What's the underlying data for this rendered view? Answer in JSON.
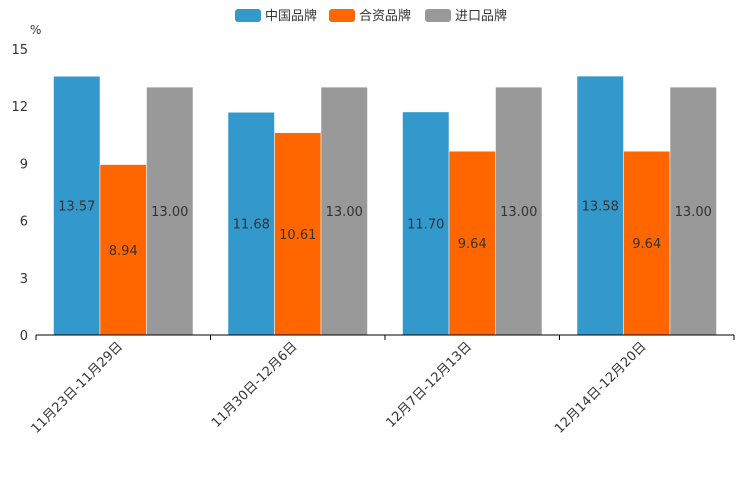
{
  "chart_data": {
    "type": "bar",
    "title": "",
    "xlabel": "",
    "ylabel": "%",
    "ylim": [
      0,
      15
    ],
    "yticks": [
      0,
      3,
      6,
      9,
      12,
      15
    ],
    "grid": false,
    "legend_position": "top-center",
    "categories": [
      "11月23日-11月29日",
      "11月30日-12月6日",
      "12月7日-12月13日",
      "12月14日-12月20日"
    ],
    "series": [
      {
        "name": "中国品牌",
        "color": "#3399cc",
        "values": [
          13.57,
          11.68,
          11.7,
          13.58
        ],
        "labels": [
          "13.57",
          "11.68",
          "11.70",
          "13.58"
        ]
      },
      {
        "name": "合资品牌",
        "color": "#ff6600",
        "values": [
          8.94,
          10.61,
          9.64,
          9.64
        ],
        "labels": [
          "8.94",
          "10.61",
          "9.64",
          "9.64"
        ]
      },
      {
        "name": "进口品牌",
        "color": "#999999",
        "values": [
          13.0,
          13.0,
          13.0,
          13.0
        ],
        "labels": [
          "13.00",
          "13.00",
          "13.00",
          "13.00"
        ]
      }
    ]
  }
}
